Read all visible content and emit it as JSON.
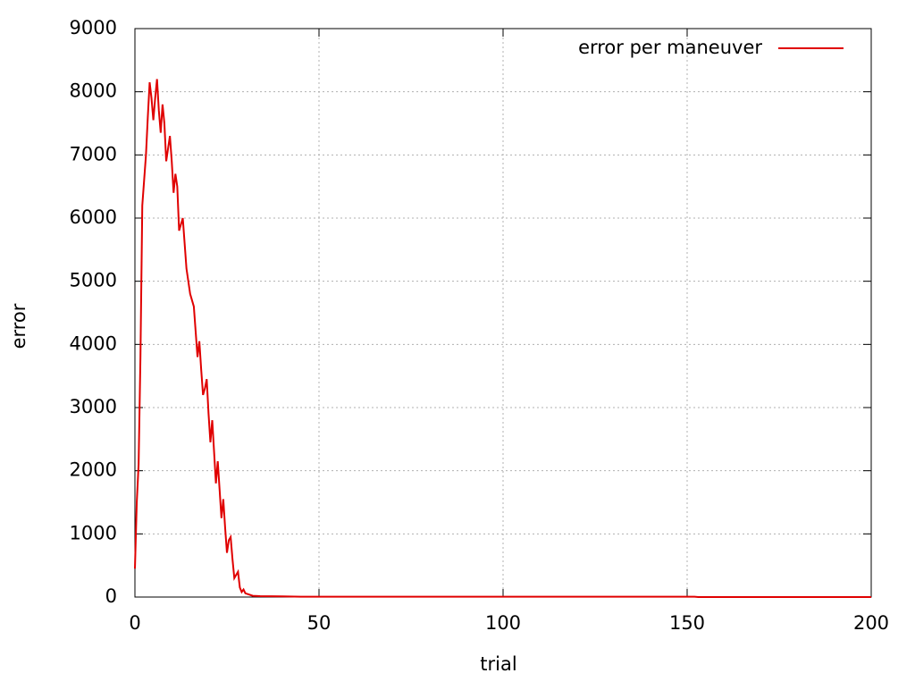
{
  "chart_data": {
    "type": "line",
    "x_label": "trial",
    "y_label": "error",
    "x": [
      0,
      0.5,
      1,
      1.5,
      2,
      2.5,
      3,
      3.5,
      4,
      4.5,
      5,
      5.5,
      6,
      6.5,
      7,
      7.5,
      8,
      8.5,
      9,
      9.5,
      10,
      10.5,
      11,
      11.5,
      12,
      12.5,
      13,
      13.5,
      14,
      14.5,
      15,
      16,
      16.5,
      17,
      17.5,
      18,
      18.5,
      19,
      19.5,
      20,
      20.5,
      21,
      21.5,
      22,
      22.5,
      23,
      23.5,
      24,
      24.5,
      25,
      25.5,
      26,
      26.5,
      27,
      27.5,
      28,
      28.5,
      29,
      29.5,
      30,
      31,
      32,
      34,
      40,
      45,
      100,
      152,
      153,
      200
    ],
    "series": [
      {
        "name": "error per maneuver",
        "color": "#e00000",
        "values": [
          450,
          1500,
          2100,
          3800,
          6200,
          6600,
          7000,
          7600,
          8150,
          7900,
          7550,
          7900,
          8200,
          7700,
          7350,
          7800,
          7500,
          6900,
          7100,
          7300,
          6900,
          6400,
          6700,
          6500,
          5800,
          5900,
          6000,
          5600,
          5200,
          5000,
          4800,
          4600,
          4200,
          3800,
          4050,
          3600,
          3200,
          3300,
          3450,
          2900,
          2450,
          2800,
          2300,
          1800,
          2150,
          1700,
          1250,
          1550,
          1100,
          700,
          900,
          950,
          600,
          300,
          350,
          400,
          150,
          80,
          120,
          60,
          40,
          20,
          15,
          10,
          5,
          5,
          5,
          0,
          0
        ]
      }
    ],
    "xlim": [
      0,
      200
    ],
    "xticks": [
      0,
      50,
      100,
      150,
      200
    ],
    "ylim": [
      0,
      9000
    ],
    "yticks": [
      0,
      1000,
      2000,
      3000,
      4000,
      5000,
      6000,
      7000,
      8000,
      9000
    ],
    "grid": true,
    "legend": "top-right"
  }
}
